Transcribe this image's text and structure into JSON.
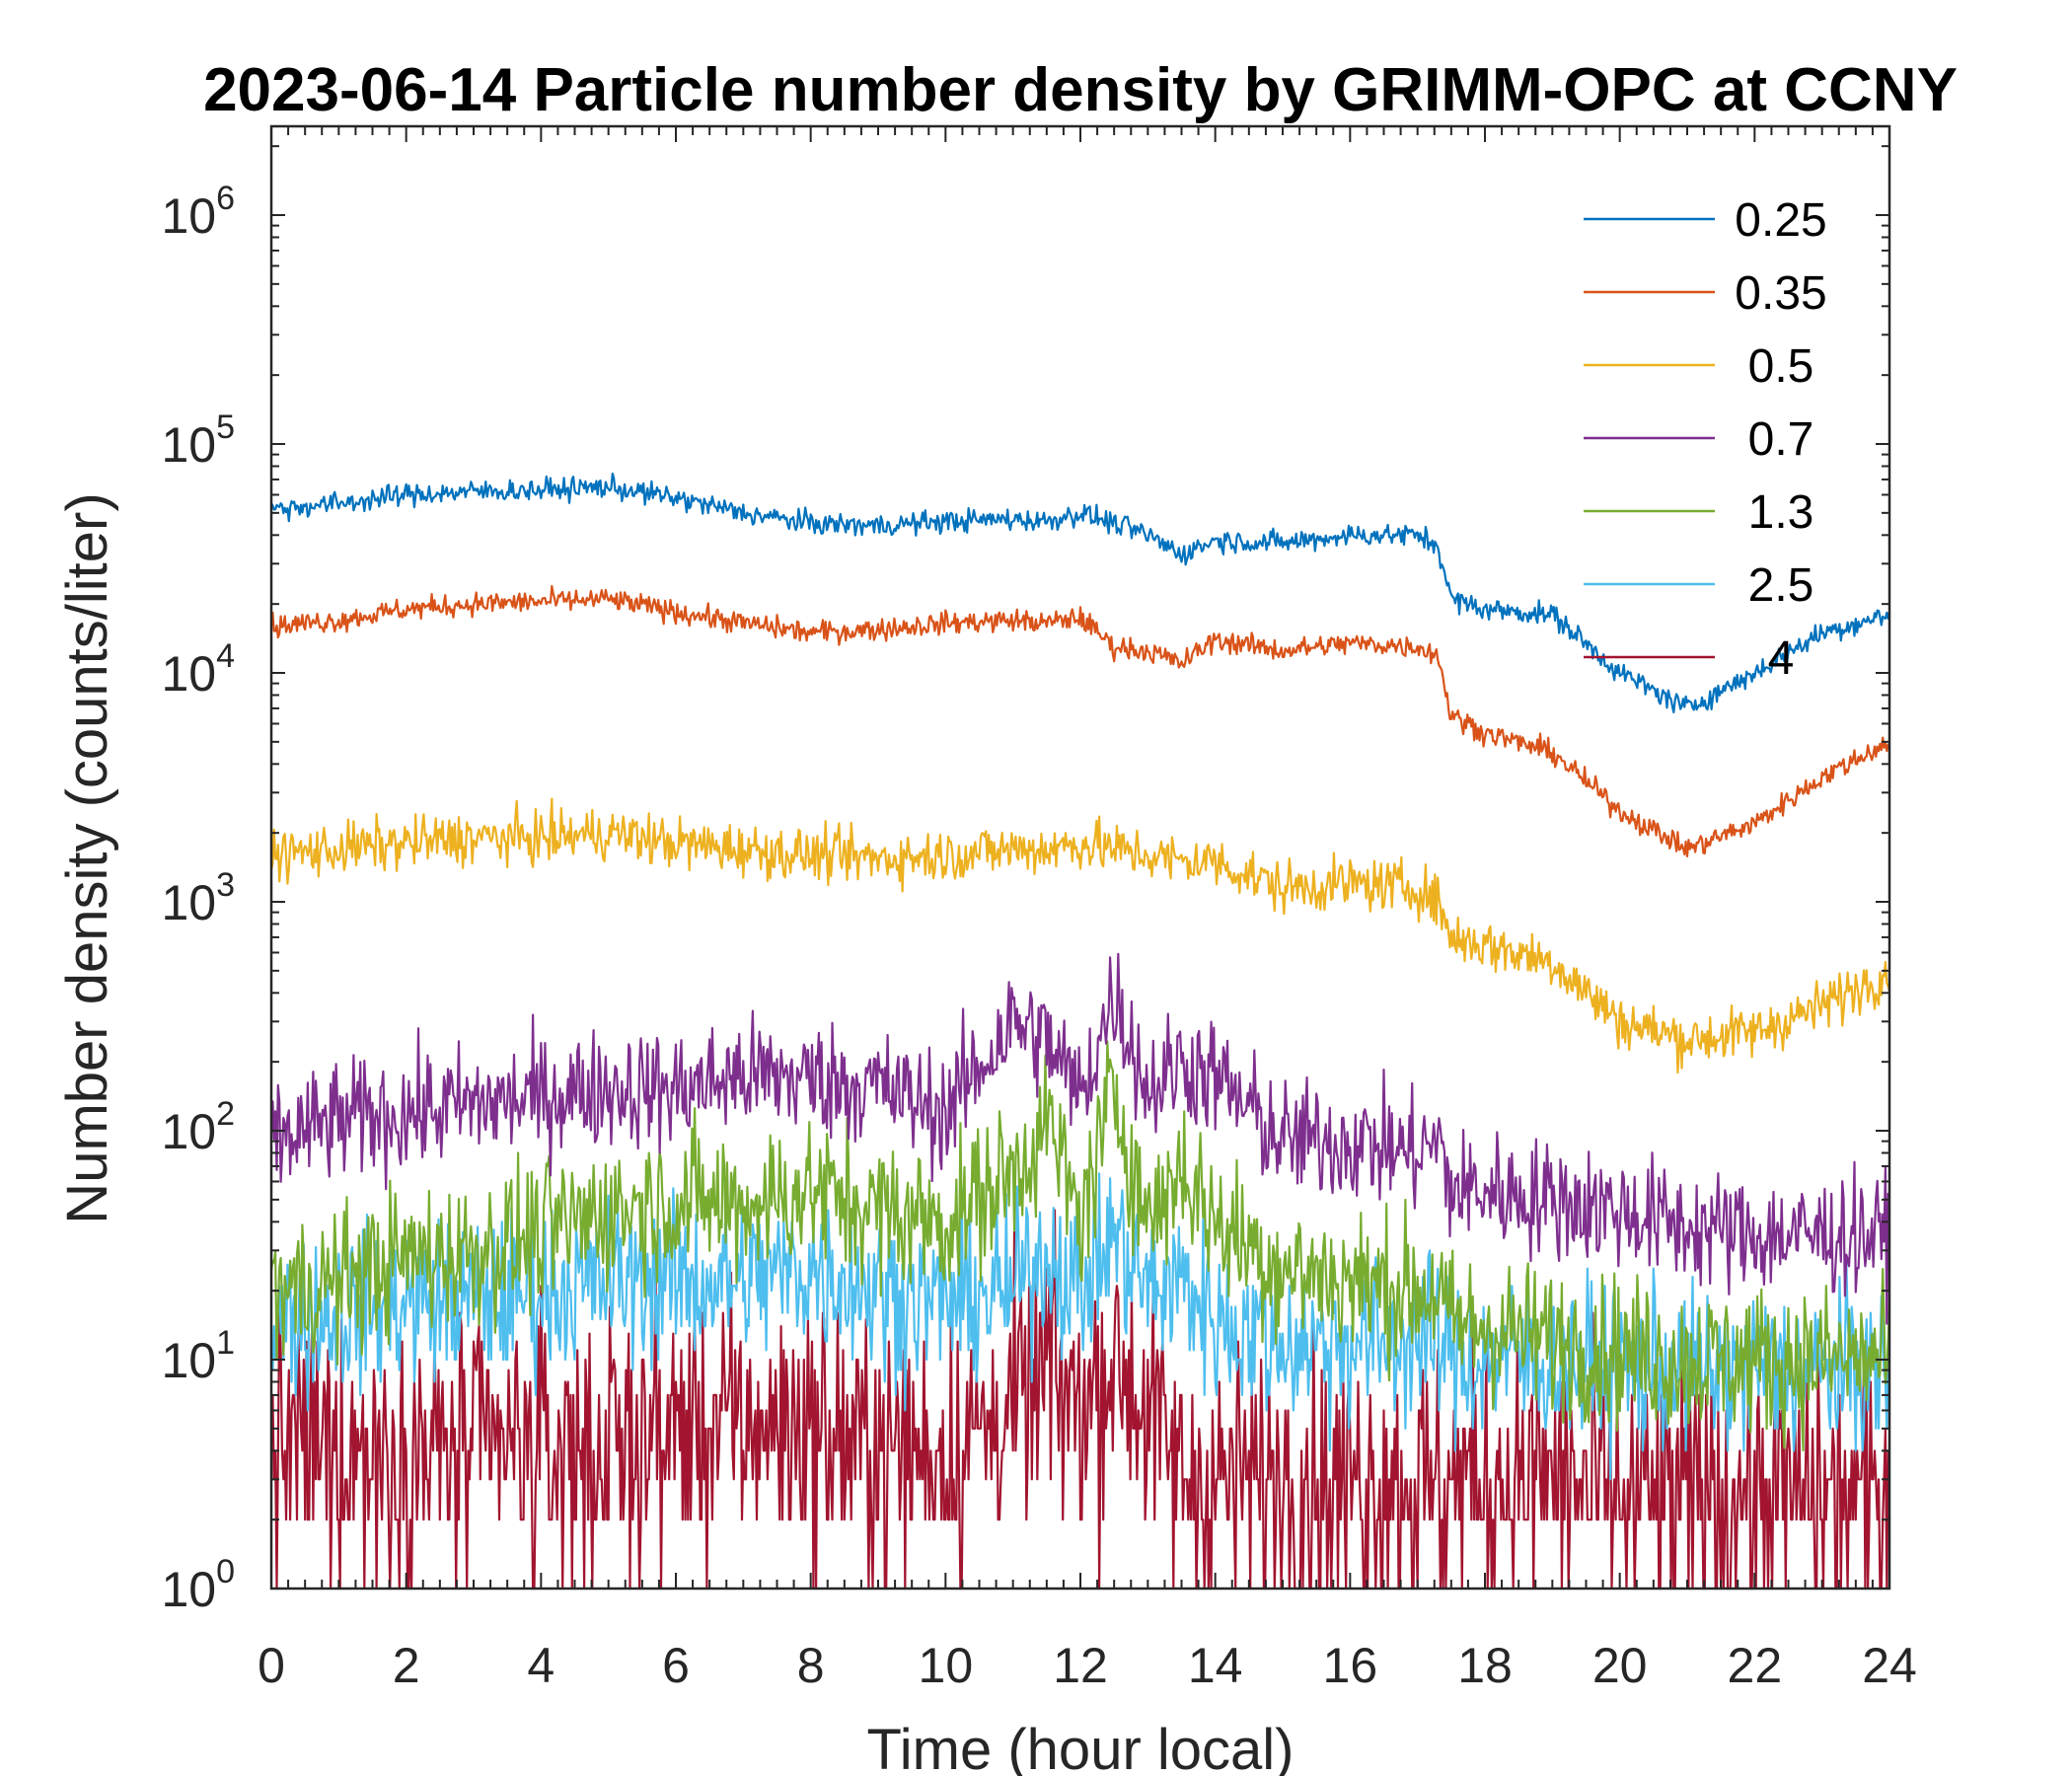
{
  "chart_data": {
    "type": "line",
    "title": "2023-06-14 Particle number density by GRIMM-OPC at CCNY",
    "xlabel": "Time (hour local)",
    "ylabel": "Number density (counts/liter)",
    "xlim": [
      0,
      24
    ],
    "ylim": [
      1,
      2000000
    ],
    "yscale": "log",
    "grid": false,
    "legend_position": "top-right",
    "x_ticks": [
      "0",
      "2",
      "4",
      "6",
      "8",
      "10",
      "12",
      "14",
      "16",
      "18",
      "20",
      "22",
      "24"
    ],
    "y_ticks": [
      {
        "value": 1,
        "base": "10",
        "exp": "0"
      },
      {
        "value": 10,
        "base": "10",
        "exp": "1"
      },
      {
        "value": 100,
        "base": "10",
        "exp": "2"
      },
      {
        "value": 1000,
        "base": "10",
        "exp": "3"
      },
      {
        "value": 10000,
        "base": "10",
        "exp": "4"
      },
      {
        "value": 100000,
        "base": "10",
        "exp": "5"
      },
      {
        "value": 1000000,
        "base": "10",
        "exp": "6"
      }
    ],
    "x": [
      0,
      1,
      2,
      3,
      4,
      5,
      6,
      7,
      8,
      9,
      10,
      11,
      11.5,
      12,
      12.5,
      13,
      13.5,
      14,
      15,
      16,
      17,
      17.3,
      17.5,
      18,
      19,
      20,
      21,
      22,
      23,
      24
    ],
    "series": [
      {
        "name": "0.25",
        "color": "#0072BD",
        "noise": 0.03,
        "values": [
          52000,
          55000,
          60000,
          62000,
          63000,
          65000,
          58000,
          50000,
          45000,
          44000,
          46000,
          47000,
          46000,
          50000,
          45000,
          40000,
          33000,
          38000,
          37000,
          40000,
          40000,
          36000,
          21000,
          19000,
          18000,
          10000,
          7000,
          10000,
          15000,
          18000
        ]
      },
      {
        "name": "0.35",
        "color": "#D95319",
        "noise": 0.03,
        "values": [
          16000,
          17000,
          19000,
          20000,
          20500,
          21000,
          18500,
          16500,
          15000,
          15500,
          16500,
          17000,
          16500,
          17500,
          13000,
          12500,
          11000,
          14000,
          12500,
          13500,
          13000,
          12000,
          6500,
          5500,
          4500,
          2500,
          1700,
          2200,
          3500,
          5000
        ]
      },
      {
        "name": "0.5",
        "color": "#EDB120",
        "noise": 0.07,
        "values": [
          1600,
          1700,
          1800,
          1900,
          1900,
          2000,
          1800,
          1700,
          1600,
          1550,
          1600,
          1700,
          1700,
          1800,
          1700,
          1600,
          1500,
          1500,
          1150,
          1200,
          1150,
          1000,
          700,
          650,
          550,
          300,
          250,
          270,
          350,
          500
        ]
      },
      {
        "name": "0.7",
        "color": "#7E2F8E",
        "noise": 0.16,
        "values": [
          90,
          110,
          120,
          130,
          140,
          155,
          150,
          175,
          170,
          155,
          120,
          300,
          250,
          140,
          400,
          150,
          200,
          170,
          90,
          90,
          80,
          90,
          55,
          55,
          50,
          45,
          38,
          35,
          35,
          35
        ]
      },
      {
        "name": "1.3",
        "color": "#77AC30",
        "noise": 0.2,
        "values": [
          20,
          22,
          28,
          30,
          35,
          45,
          50,
          48,
          55,
          45,
          40,
          65,
          110,
          40,
          150,
          40,
          70,
          40,
          25,
          22,
          20,
          20,
          14,
          14,
          12,
          11,
          10,
          10,
          10,
          10
        ]
      },
      {
        "name": "2.5",
        "color": "#4DBEEE",
        "noise": 0.22,
        "values": [
          15,
          16,
          18,
          18,
          20,
          22,
          22,
          22,
          25,
          20,
          18,
          20,
          30,
          20,
          35,
          20,
          22,
          15,
          12,
          12,
          12,
          12,
          10,
          10,
          10,
          9,
          9,
          9,
          9,
          9
        ]
      },
      {
        "name": "4",
        "color": "#A2142F",
        "noise": 0.35,
        "values": [
          4,
          4,
          4,
          4,
          4,
          4,
          5,
          5,
          5,
          4,
          4,
          6,
          9,
          6,
          10,
          6,
          3,
          3,
          3,
          3,
          3,
          3,
          3,
          3,
          3,
          2.5,
          2.5,
          2.5,
          2.5,
          2.5
        ]
      }
    ]
  }
}
